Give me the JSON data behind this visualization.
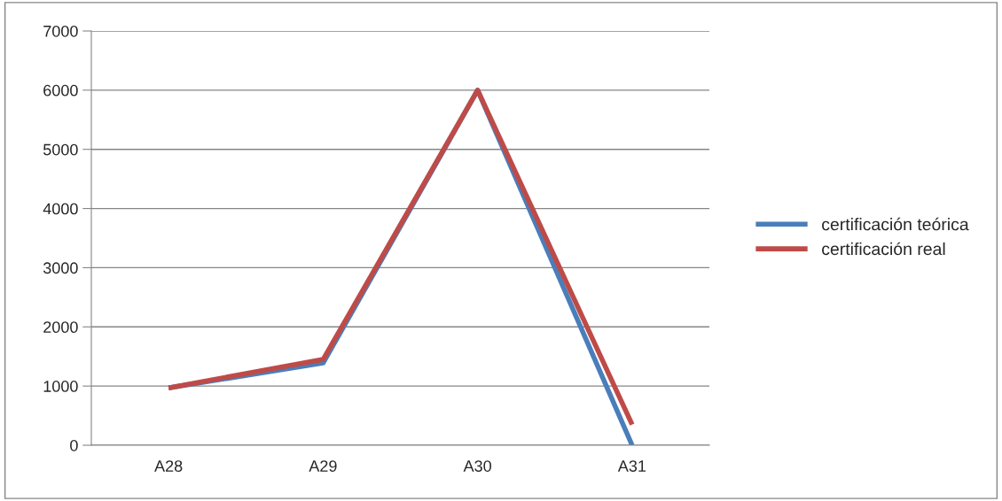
{
  "chart_data": {
    "type": "line",
    "categories": [
      "A28",
      "A29",
      "A30",
      "A31"
    ],
    "series": [
      {
        "name": "certificación teórica",
        "color": "#4a7ebb",
        "values": [
          970,
          1390,
          6000,
          0
        ]
      },
      {
        "name": "certificación real",
        "color": "#be4b48",
        "values": [
          970,
          1450,
          6000,
          350
        ]
      }
    ],
    "ylim": [
      0,
      7000
    ],
    "yticks": [
      0,
      1000,
      2000,
      3000,
      4000,
      5000,
      6000,
      7000
    ],
    "grid": "y",
    "legend": "right",
    "marker": "none",
    "line_style": "solid"
  }
}
